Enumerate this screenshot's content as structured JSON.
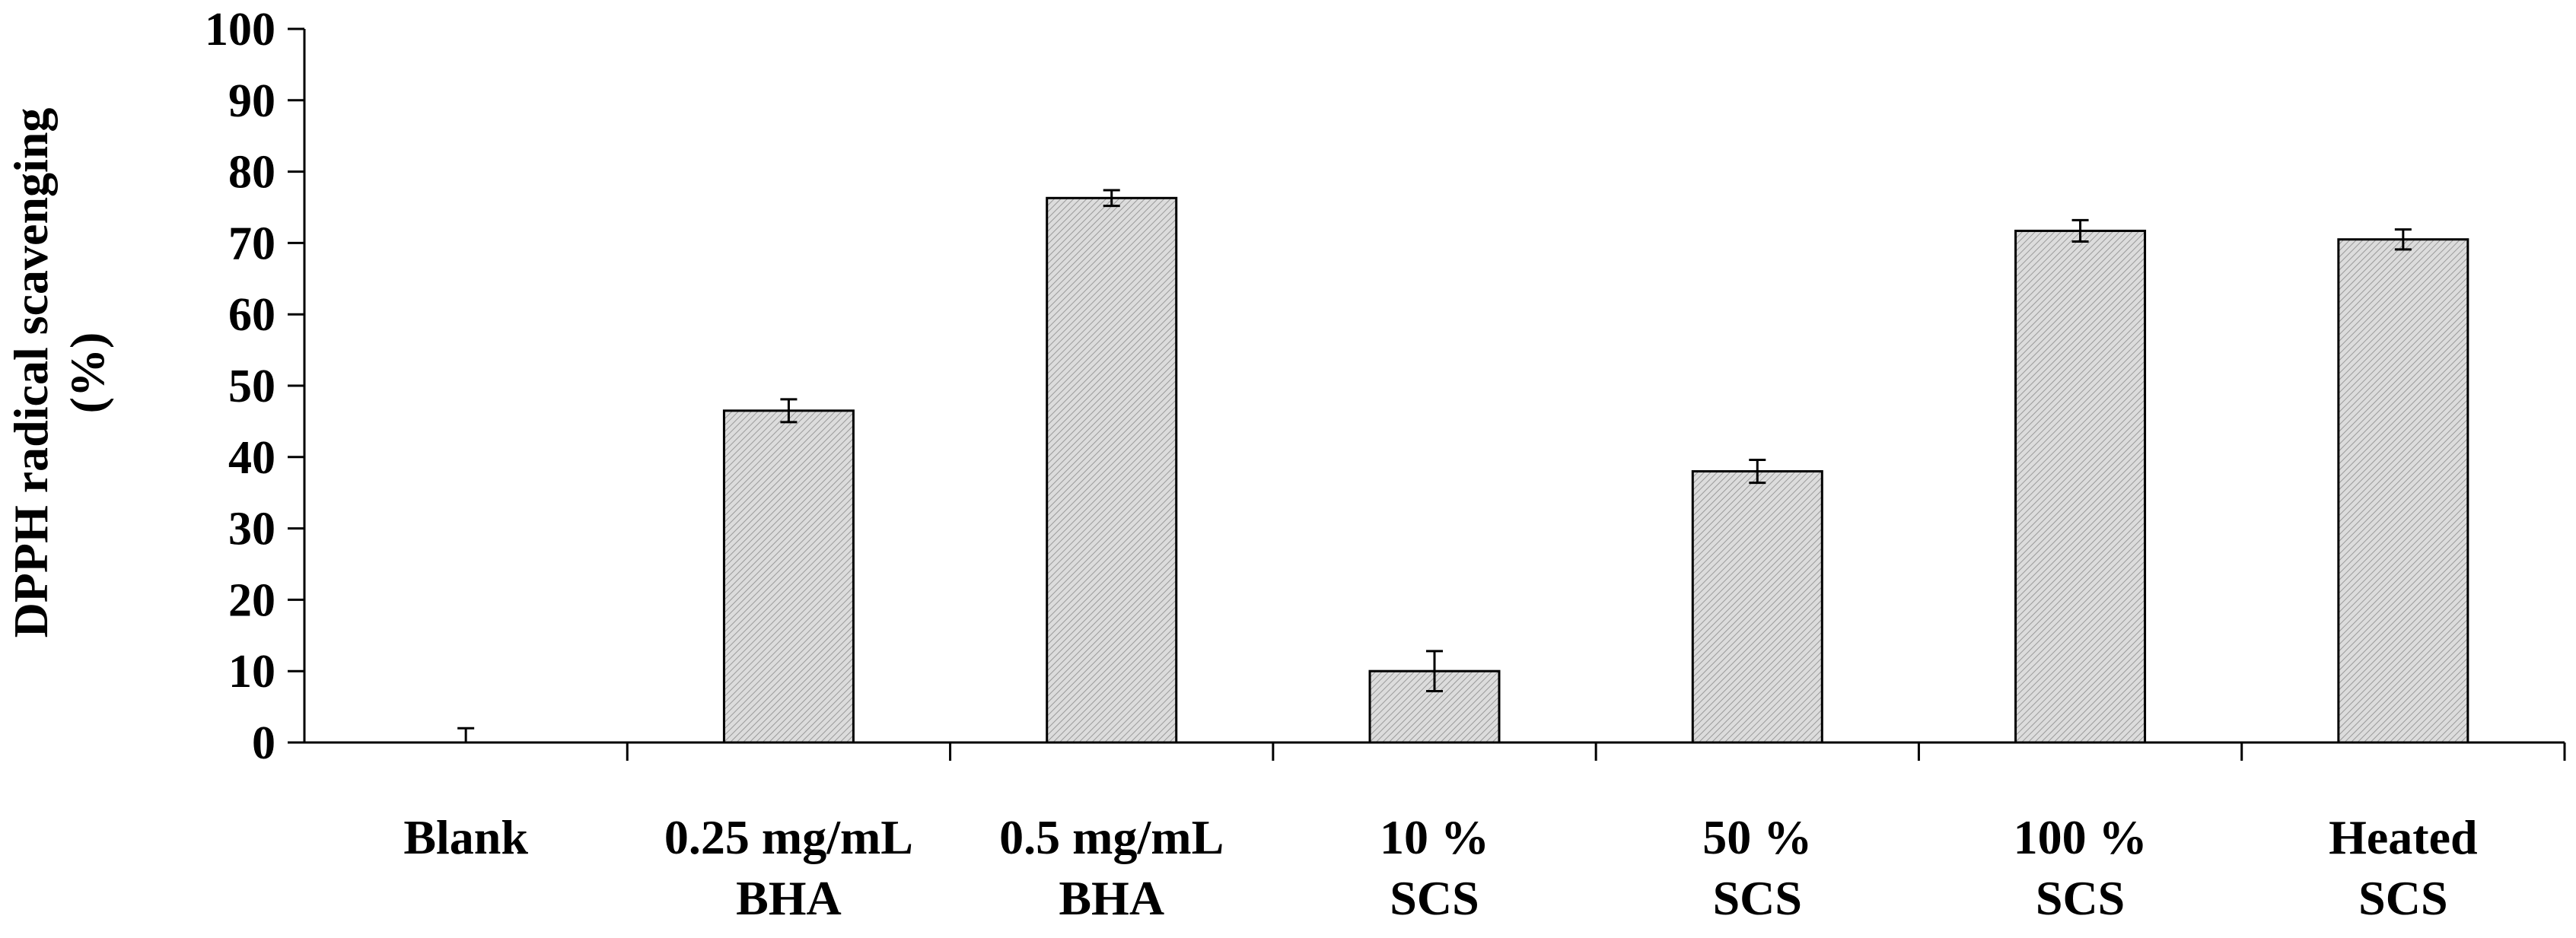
{
  "chart_data": {
    "type": "bar",
    "title": "",
    "xlabel": "",
    "ylabel": [
      "DPPH radical scavenging",
      "(%)"
    ],
    "ylim": [
      0,
      100
    ],
    "yticks": [
      0,
      10,
      20,
      30,
      40,
      50,
      60,
      70,
      80,
      90,
      100
    ],
    "grid": false,
    "categories": [
      [
        "Blank",
        ""
      ],
      [
        "0.25 mg/mL",
        "BHA"
      ],
      [
        "0.5 mg/mL",
        "BHA"
      ],
      [
        "10 %",
        "SCS"
      ],
      [
        "50 %",
        "SCS"
      ],
      [
        "100 %",
        "SCS"
      ],
      [
        "Heated",
        "SCS"
      ]
    ],
    "values": [
      0,
      46.5,
      76.3,
      10.0,
      38.0,
      71.7,
      70.5
    ],
    "errors": [
      2.0,
      1.6,
      1.1,
      2.8,
      1.6,
      1.5,
      1.4
    ],
    "bar_fill": "#d9d9d9",
    "bar_hatch": "#9a9a9a",
    "bar_edge": "#000000"
  }
}
